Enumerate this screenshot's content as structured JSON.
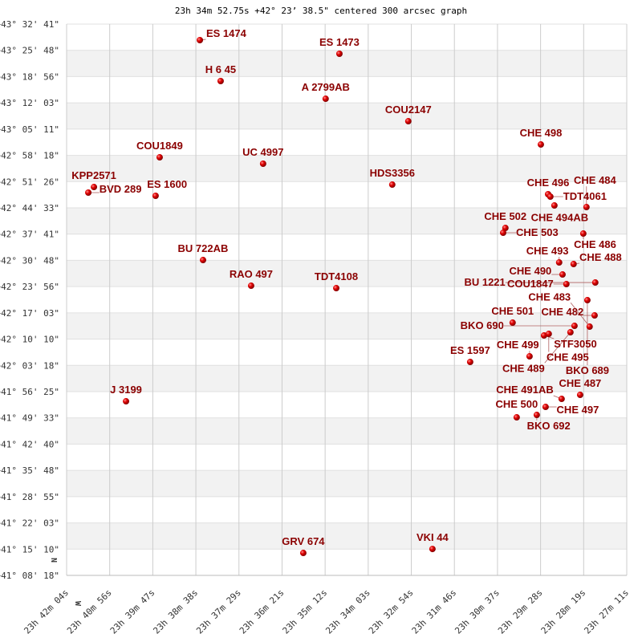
{
  "chart_data": {
    "type": "scatter",
    "title": "23h 34m 52.75s +42° 23’ 38.5\" centered 300 arcsec graph",
    "x_axis": {
      "unit": "RA (hours)",
      "range": [
        23.70111,
        23.45306
      ],
      "tick_labels": [
        "23h 42m 04s",
        "23h 40m 56s",
        "23h 39m 47s",
        "23h 38m 38s",
        "23h 37m 29s",
        "23h 36m 21s",
        "23h 35m 12s",
        "23h 34m 03s",
        "23h 32m 54s",
        "23h 31m 46s",
        "23h 30m 37s",
        "23h 29m 28s",
        "23h 28m 19s",
        "23h 27m 11s"
      ]
    },
    "y_axis": {
      "unit": "Dec (degrees)",
      "range": [
        41.13833,
        43.54472
      ],
      "tick_labels": [
        "+43° 32' 41\"",
        "+43° 25' 48\"",
        "+43° 18' 56\"",
        "+43° 12' 03\"",
        "+43° 05' 11\"",
        "+42° 58' 18\"",
        "+42° 51' 26\"",
        "+42° 44' 33\"",
        "+42° 37' 41\"",
        "+42° 30' 48\"",
        "+42° 23' 56\"",
        "+42° 17' 03\"",
        "+42° 10' 10\"",
        "+42° 03' 18\"",
        "+41° 56' 25\"",
        "+41° 49' 33\"",
        "+41° 42' 40\"",
        "+41° 35' 48\"",
        "+41° 28' 55\"",
        "+41° 22' 03\"",
        "+41° 15' 10\"",
        "+41° 08' 18\""
      ]
    },
    "north_label": "N",
    "west_label": "W",
    "grid": true,
    "colors": {
      "point": "#dd0000",
      "label": "#8b0000",
      "band": "#f2f2f2",
      "grid": "#cccccc"
    },
    "points": [
      {
        "name": "ES 1474",
        "ra": 23.6421,
        "dec": 43.4747
      },
      {
        "name": "ES 1473",
        "ra": 23.5803,
        "dec": 43.4151
      },
      {
        "name": "H 6  45",
        "ra": 23.6329,
        "dec": 43.296
      },
      {
        "name": "A  2799AB",
        "ra": 23.5864,
        "dec": 43.2189
      },
      {
        "name": "COU2147",
        "ra": 23.5498,
        "dec": 43.1208
      },
      {
        "name": "CHE 498",
        "ra": 23.4911,
        "dec": 43.0192
      },
      {
        "name": "COU1849",
        "ra": 23.6599,
        "dec": 42.9632
      },
      {
        "name": "UC 4997",
        "ra": 23.6141,
        "dec": 42.9352
      },
      {
        "name": "KPP2571",
        "ra": 23.689,
        "dec": 42.8336
      },
      {
        "name": "BVD 289",
        "ra": 23.6915,
        "dec": 42.8091
      },
      {
        "name": "ES 1600",
        "ra": 23.6617,
        "dec": 42.7951
      },
      {
        "name": "HDS3356",
        "ra": 23.5569,
        "dec": 42.8441
      },
      {
        "name": "CHE 496",
        "ra": 23.4879,
        "dec": 42.8021
      },
      {
        "name": "TDT4061",
        "ra": 23.4869,
        "dec": 42.7916
      },
      {
        "name": "CHE 494AB",
        "ra": 23.4851,
        "dec": 42.753
      },
      {
        "name": "CHE 484",
        "ra": 23.4709,
        "dec": 42.746
      },
      {
        "name": "CHE 502",
        "ra": 23.5068,
        "dec": 42.6549
      },
      {
        "name": "CHE 503",
        "ra": 23.5078,
        "dec": 42.6339
      },
      {
        "name": "CHE 486",
        "ra": 23.4723,
        "dec": 42.6304
      },
      {
        "name": "BU  722AB",
        "ra": 23.6407,
        "dec": 42.5148
      },
      {
        "name": "RAO 497",
        "ra": 23.6194,
        "dec": 42.4027
      },
      {
        "name": "TDT4108",
        "ra": 23.5817,
        "dec": 42.3922
      },
      {
        "name": "CHE 493",
        "ra": 23.483,
        "dec": 42.5043
      },
      {
        "name": "CHE 488",
        "ra": 23.4766,
        "dec": 42.4973
      },
      {
        "name": "CHE 490",
        "ra": 23.4815,
        "dec": 42.4518
      },
      {
        "name": "COU1847",
        "ra": 23.4798,
        "dec": 42.4097
      },
      {
        "name": "BU 1221",
        "ra": 23.467,
        "dec": 42.4167
      },
      {
        "name": "BKO 689",
        "ra": 23.4705,
        "dec": 42.3397
      },
      {
        "name": "CHE 482",
        "ra": 23.4673,
        "dec": 42.2731
      },
      {
        "name": "CHE 501",
        "ra": 23.5036,
        "dec": 42.2416
      },
      {
        "name": "STF3050",
        "ra": 23.4897,
        "dec": 42.1855
      },
      {
        "name": "CHE 495",
        "ra": 23.4876,
        "dec": 42.1925
      },
      {
        "name": "BKO 690",
        "ra": 23.4762,
        "dec": 42.2276
      },
      {
        "name": "CHE 489",
        "ra": 23.478,
        "dec": 42.1995
      },
      {
        "name": "CHE 483",
        "ra": 23.4695,
        "dec": 42.2241
      },
      {
        "name": "CHE 499",
        "ra": 23.4961,
        "dec": 42.0945
      },
      {
        "name": "ES 1597",
        "ra": 23.5224,
        "dec": 42.0699
      },
      {
        "name": "J  3199",
        "ra": 23.6748,
        "dec": 41.8983
      },
      {
        "name": "CHE 487",
        "ra": 23.4737,
        "dec": 41.9263
      },
      {
        "name": "CHE 491AB",
        "ra": 23.4819,
        "dec": 41.9088
      },
      {
        "name": "CHE 497",
        "ra": 23.489,
        "dec": 41.8738
      },
      {
        "name": "BKO 692",
        "ra": 23.4929,
        "dec": 41.8387
      },
      {
        "name": "CHE 500",
        "ra": 23.5018,
        "dec": 41.8282
      },
      {
        "name": "GRV 674",
        "ra": 23.5963,
        "dec": 41.2362
      },
      {
        "name": "VKI  44",
        "ra": 23.5391,
        "dec": 41.2537
      }
    ]
  }
}
